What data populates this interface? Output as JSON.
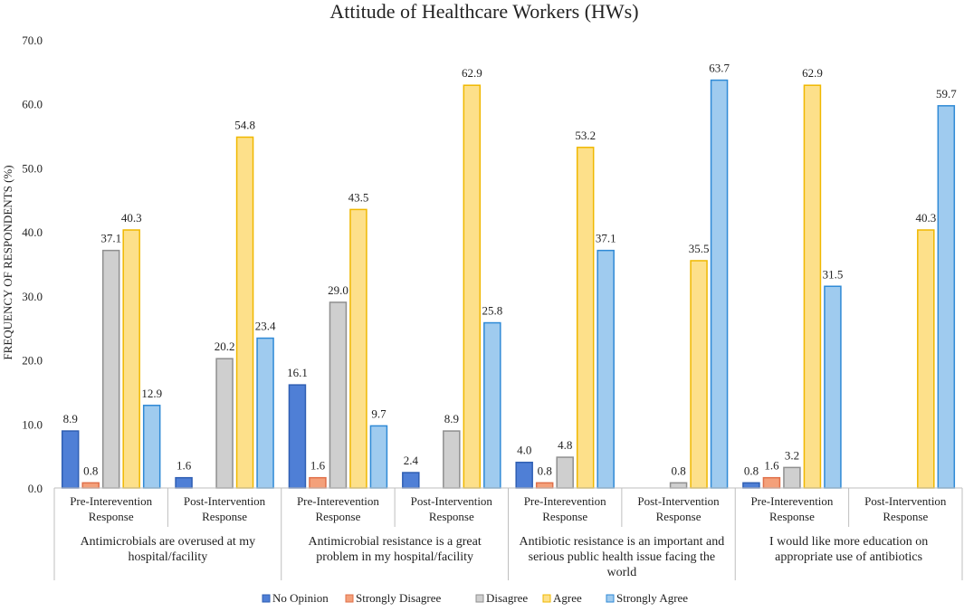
{
  "chart_data": {
    "type": "bar",
    "title": "Attitude of Healthcare Workers (HWs)",
    "ylabel": "FREQUENCY OF RESPONDENTS (%)",
    "xlabel": "",
    "ylim": [
      0,
      70
    ],
    "yticks": [
      "0.0",
      "10.0",
      "20.0",
      "30.0",
      "40.0",
      "50.0",
      "60.0",
      "70.0"
    ],
    "grid": false,
    "legend_position": "bottom",
    "groups": [
      {
        "label": "Antimicrobials are overused at my hospital/facility",
        "label_lines": [
          "Antimicrobials are overused at my",
          "hospital/facility"
        ],
        "subcategories": [
          {
            "label_lines": [
              "Pre-Interevention",
              "Response"
            ],
            "values": [
              8.9,
              0.8,
              37.1,
              40.3,
              12.9
            ]
          },
          {
            "label_lines": [
              "Post-Intervention",
              "Response"
            ],
            "values": [
              1.6,
              0.0,
              20.2,
              54.8,
              23.4
            ]
          }
        ]
      },
      {
        "label": "Antimicrobial resistance is a great problem in my hospital/facility",
        "label_lines": [
          "Antimicrobial resistance is a great",
          "problem in my hospital/facility"
        ],
        "subcategories": [
          {
            "label_lines": [
              "Pre-Interevention",
              "Response"
            ],
            "values": [
              16.1,
              1.6,
              29.0,
              43.5,
              9.7
            ]
          },
          {
            "label_lines": [
              "Post-Intervention",
              "Response"
            ],
            "values": [
              2.4,
              0.0,
              8.9,
              62.9,
              25.8
            ]
          }
        ]
      },
      {
        "label": "Antibiotic resistance is an important and serious public health issue facing the world",
        "label_lines": [
          "Antibiotic resistance is an important and",
          "serious public health issue facing the",
          "world"
        ],
        "subcategories": [
          {
            "label_lines": [
              "Pre-Interevention",
              "Response"
            ],
            "values": [
              4.0,
              0.8,
              4.8,
              53.2,
              37.1
            ]
          },
          {
            "label_lines": [
              "Post-Intervention",
              "Response"
            ],
            "values": [
              0.0,
              0.0,
              0.8,
              35.5,
              63.7
            ]
          }
        ]
      },
      {
        "label": "I would like more education on appropriate use of antibiotics",
        "label_lines": [
          "I would like more education on",
          "appropriate use of antibiotics"
        ],
        "subcategories": [
          {
            "label_lines": [
              "Pre-Interevention",
              "Response"
            ],
            "values": [
              0.8,
              1.6,
              3.2,
              62.9,
              31.5
            ]
          },
          {
            "label_lines": [
              "Post-Intervention",
              "Response"
            ],
            "values": [
              0.0,
              0.0,
              0.0,
              40.3,
              59.7
            ]
          }
        ]
      }
    ],
    "series": [
      {
        "name": "No Opinion",
        "color": "#4f7fd6",
        "stroke": "#2f5fb3"
      },
      {
        "name": "Strongly Disagree",
        "color": "#f4a07a",
        "stroke": "#e0704a"
      },
      {
        "name": "Disagree",
        "color": "#cfcfcf",
        "stroke": "#8f8f8f"
      },
      {
        "name": "Agree",
        "color": "#fde08a",
        "stroke": "#f0b800"
      },
      {
        "name": "Strongly Agree",
        "color": "#9fcbef",
        "stroke": "#2f8ad6"
      }
    ]
  }
}
